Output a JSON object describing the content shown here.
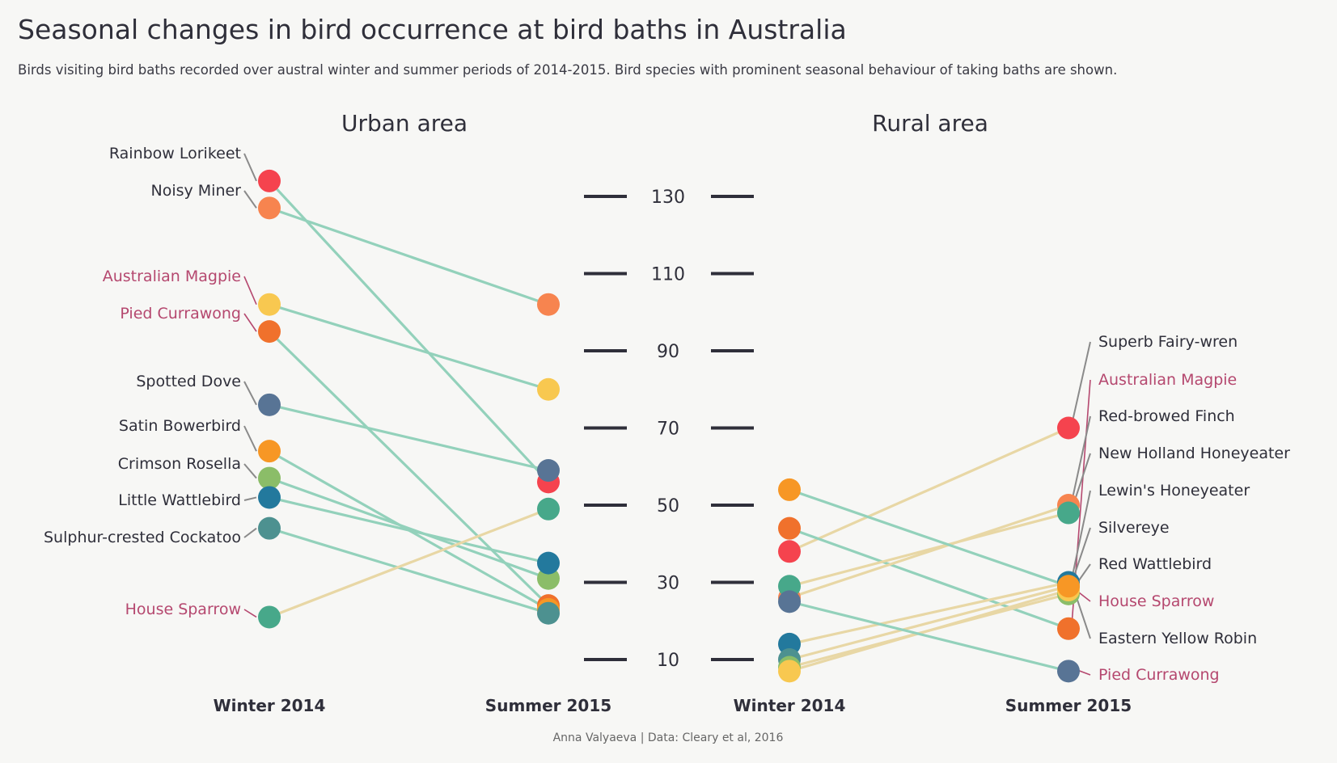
{
  "title": "Seasonal changes in bird occurrence at bird baths in Australia",
  "subtitle": "Birds visiting bird baths recorded over austral winter and summer periods of 2014-2015. Bird species with prominent seasonal behaviour of taking baths are shown.",
  "caption": "Anna Valyaeva | Data: Cleary et al, 2016",
  "colors": {
    "decrease_line": "#93d1bb",
    "increase_line": "#e8d7a5",
    "highlight_label": "#b5486f",
    "text": "#2f2f3a"
  },
  "chart_data": {
    "type": "slope",
    "x": [
      "Winter 2014",
      "Summer 2015"
    ],
    "yticks": [
      10,
      30,
      50,
      70,
      90,
      110,
      130
    ],
    "panels": [
      {
        "title": "Urban area",
        "series": [
          {
            "name": "Rainbow Lorikeet",
            "values": [
              134,
              56
            ],
            "color": "#f5434e",
            "highlight": false
          },
          {
            "name": "Noisy Miner",
            "values": [
              127,
              102
            ],
            "color": "#f7844f",
            "highlight": false
          },
          {
            "name": "Australian Magpie",
            "values": [
              102,
              80
            ],
            "color": "#f8c850",
            "highlight": true
          },
          {
            "name": "Pied Currawong",
            "values": [
              95,
              24
            ],
            "color": "#f0712c",
            "highlight": true
          },
          {
            "name": "Spotted Dove",
            "values": [
              76,
              59
            ],
            "color": "#587495",
            "highlight": false
          },
          {
            "name": "Satin Bowerbird",
            "values": [
              64,
              23
            ],
            "color": "#f79725",
            "highlight": false
          },
          {
            "name": "Crimson Rosella",
            "values": [
              57,
              31
            ],
            "color": "#8bbd68",
            "highlight": false
          },
          {
            "name": "Little Wattlebird",
            "values": [
              52,
              35
            ],
            "color": "#23799d",
            "highlight": false
          },
          {
            "name": "Sulphur-crested Cockatoo",
            "values": [
              44,
              22
            ],
            "color": "#4d9190",
            "highlight": false
          },
          {
            "name": "House Sparrow",
            "values": [
              21,
              49
            ],
            "color": "#47a88a",
            "highlight": true
          }
        ]
      },
      {
        "title": "Rural area",
        "series": [
          {
            "name": "Superb Fairy-wren",
            "values": [
              38,
              70
            ],
            "color": "#f5434e",
            "highlight": false
          },
          {
            "name": "Australian Magpie",
            "values": [
              44,
              18
            ],
            "color": "#f0712c",
            "highlight": true
          },
          {
            "name": "Red-browed Finch",
            "values": [
              26,
              50
            ],
            "color": "#f7844f",
            "highlight": false
          },
          {
            "name": "New Holland Honeyeater",
            "values": [
              29,
              48
            ],
            "color": "#47a88a",
            "highlight": false
          },
          {
            "name": "Lewin's Honeyeater",
            "values": [
              14,
              30
            ],
            "color": "#23799d",
            "highlight": false
          },
          {
            "name": "Silvereye",
            "values": [
              10,
              29
            ],
            "color": "#4d9190",
            "highlight": false
          },
          {
            "name": "Red Wattlebird",
            "values": [
              8,
              27
            ],
            "color": "#8bbd68",
            "highlight": false
          },
          {
            "name": "House Sparrow",
            "values": [
              7,
              28
            ],
            "color": "#f8c850",
            "highlight": true
          },
          {
            "name": "Eastern Yellow Robin",
            "values": [
              54,
              29
            ],
            "color": "#f79725",
            "highlight": false
          },
          {
            "name": "Pied Currawong",
            "values": [
              25,
              7
            ],
            "color": "#587495",
            "highlight": true
          }
        ]
      }
    ]
  }
}
